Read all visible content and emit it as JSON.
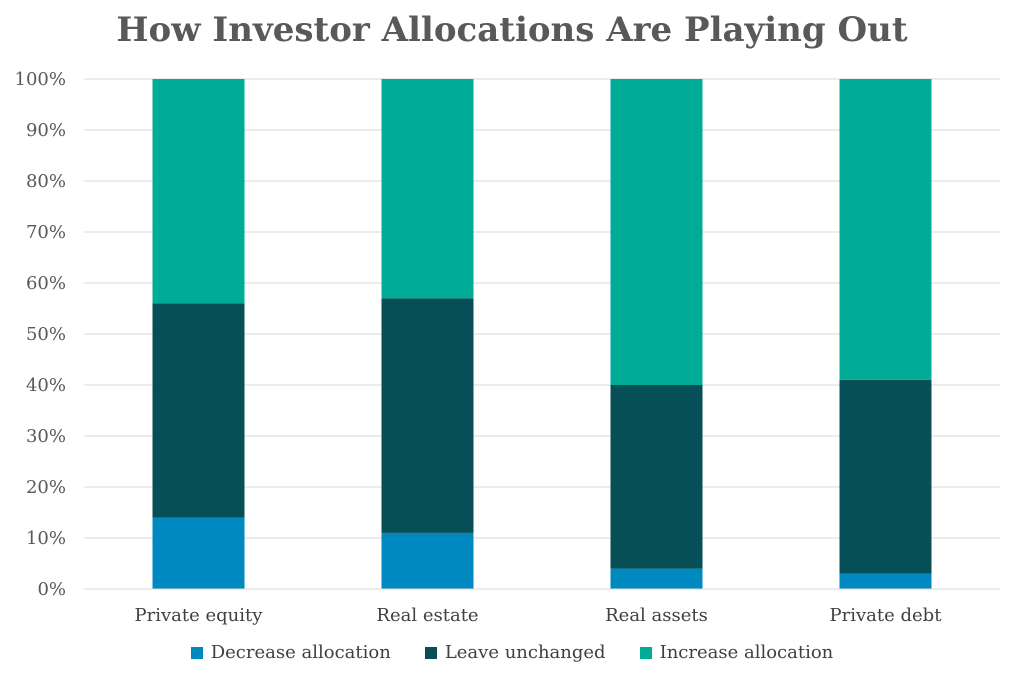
{
  "chart_data": {
    "type": "bar",
    "stacked": true,
    "title": "How Investor Allocations Are Playing Out",
    "xlabel": "",
    "ylabel": "",
    "ylim": [
      0,
      100
    ],
    "y_ticks": [
      "0%",
      "10%",
      "20%",
      "30%",
      "40%",
      "50%",
      "60%",
      "70%",
      "80%",
      "90%",
      "100%"
    ],
    "grid": true,
    "legend_position": "bottom",
    "categories": [
      "Private equity",
      "Real estate",
      "Real assets",
      "Private debt"
    ],
    "series": [
      {
        "name": "Decrease allocation",
        "color": "#0088c0",
        "values": [
          14,
          11,
          4,
          3
        ]
      },
      {
        "name": "Leave unchanged",
        "color": "#074f57",
        "values": [
          42,
          46,
          36,
          38
        ]
      },
      {
        "name": "Increase allocation",
        "color": "#00ac98",
        "values": [
          44,
          43,
          60,
          59
        ]
      }
    ]
  }
}
